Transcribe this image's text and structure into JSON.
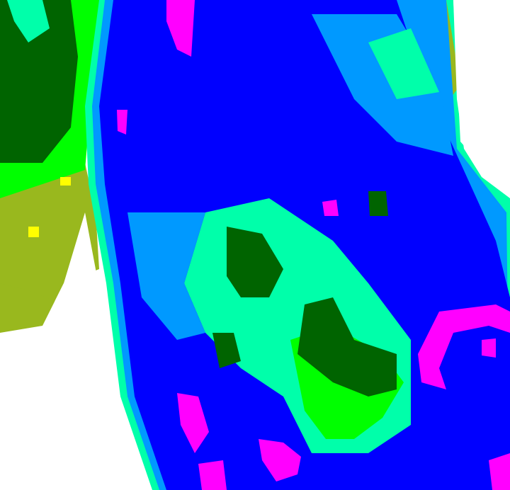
{
  "map": {
    "type": "classified-raster",
    "palette": {
      "water_deep": "#0000ff",
      "water_mid": "#0099ff",
      "water_shallow": "#00ffaa",
      "veg_bright": "#00ff00",
      "veg_dark": "#006400",
      "land_olive": "#99b81e",
      "land_yellow": "#ffff00",
      "anomaly": "#ff00ff",
      "bare": "#ffffff"
    }
  }
}
